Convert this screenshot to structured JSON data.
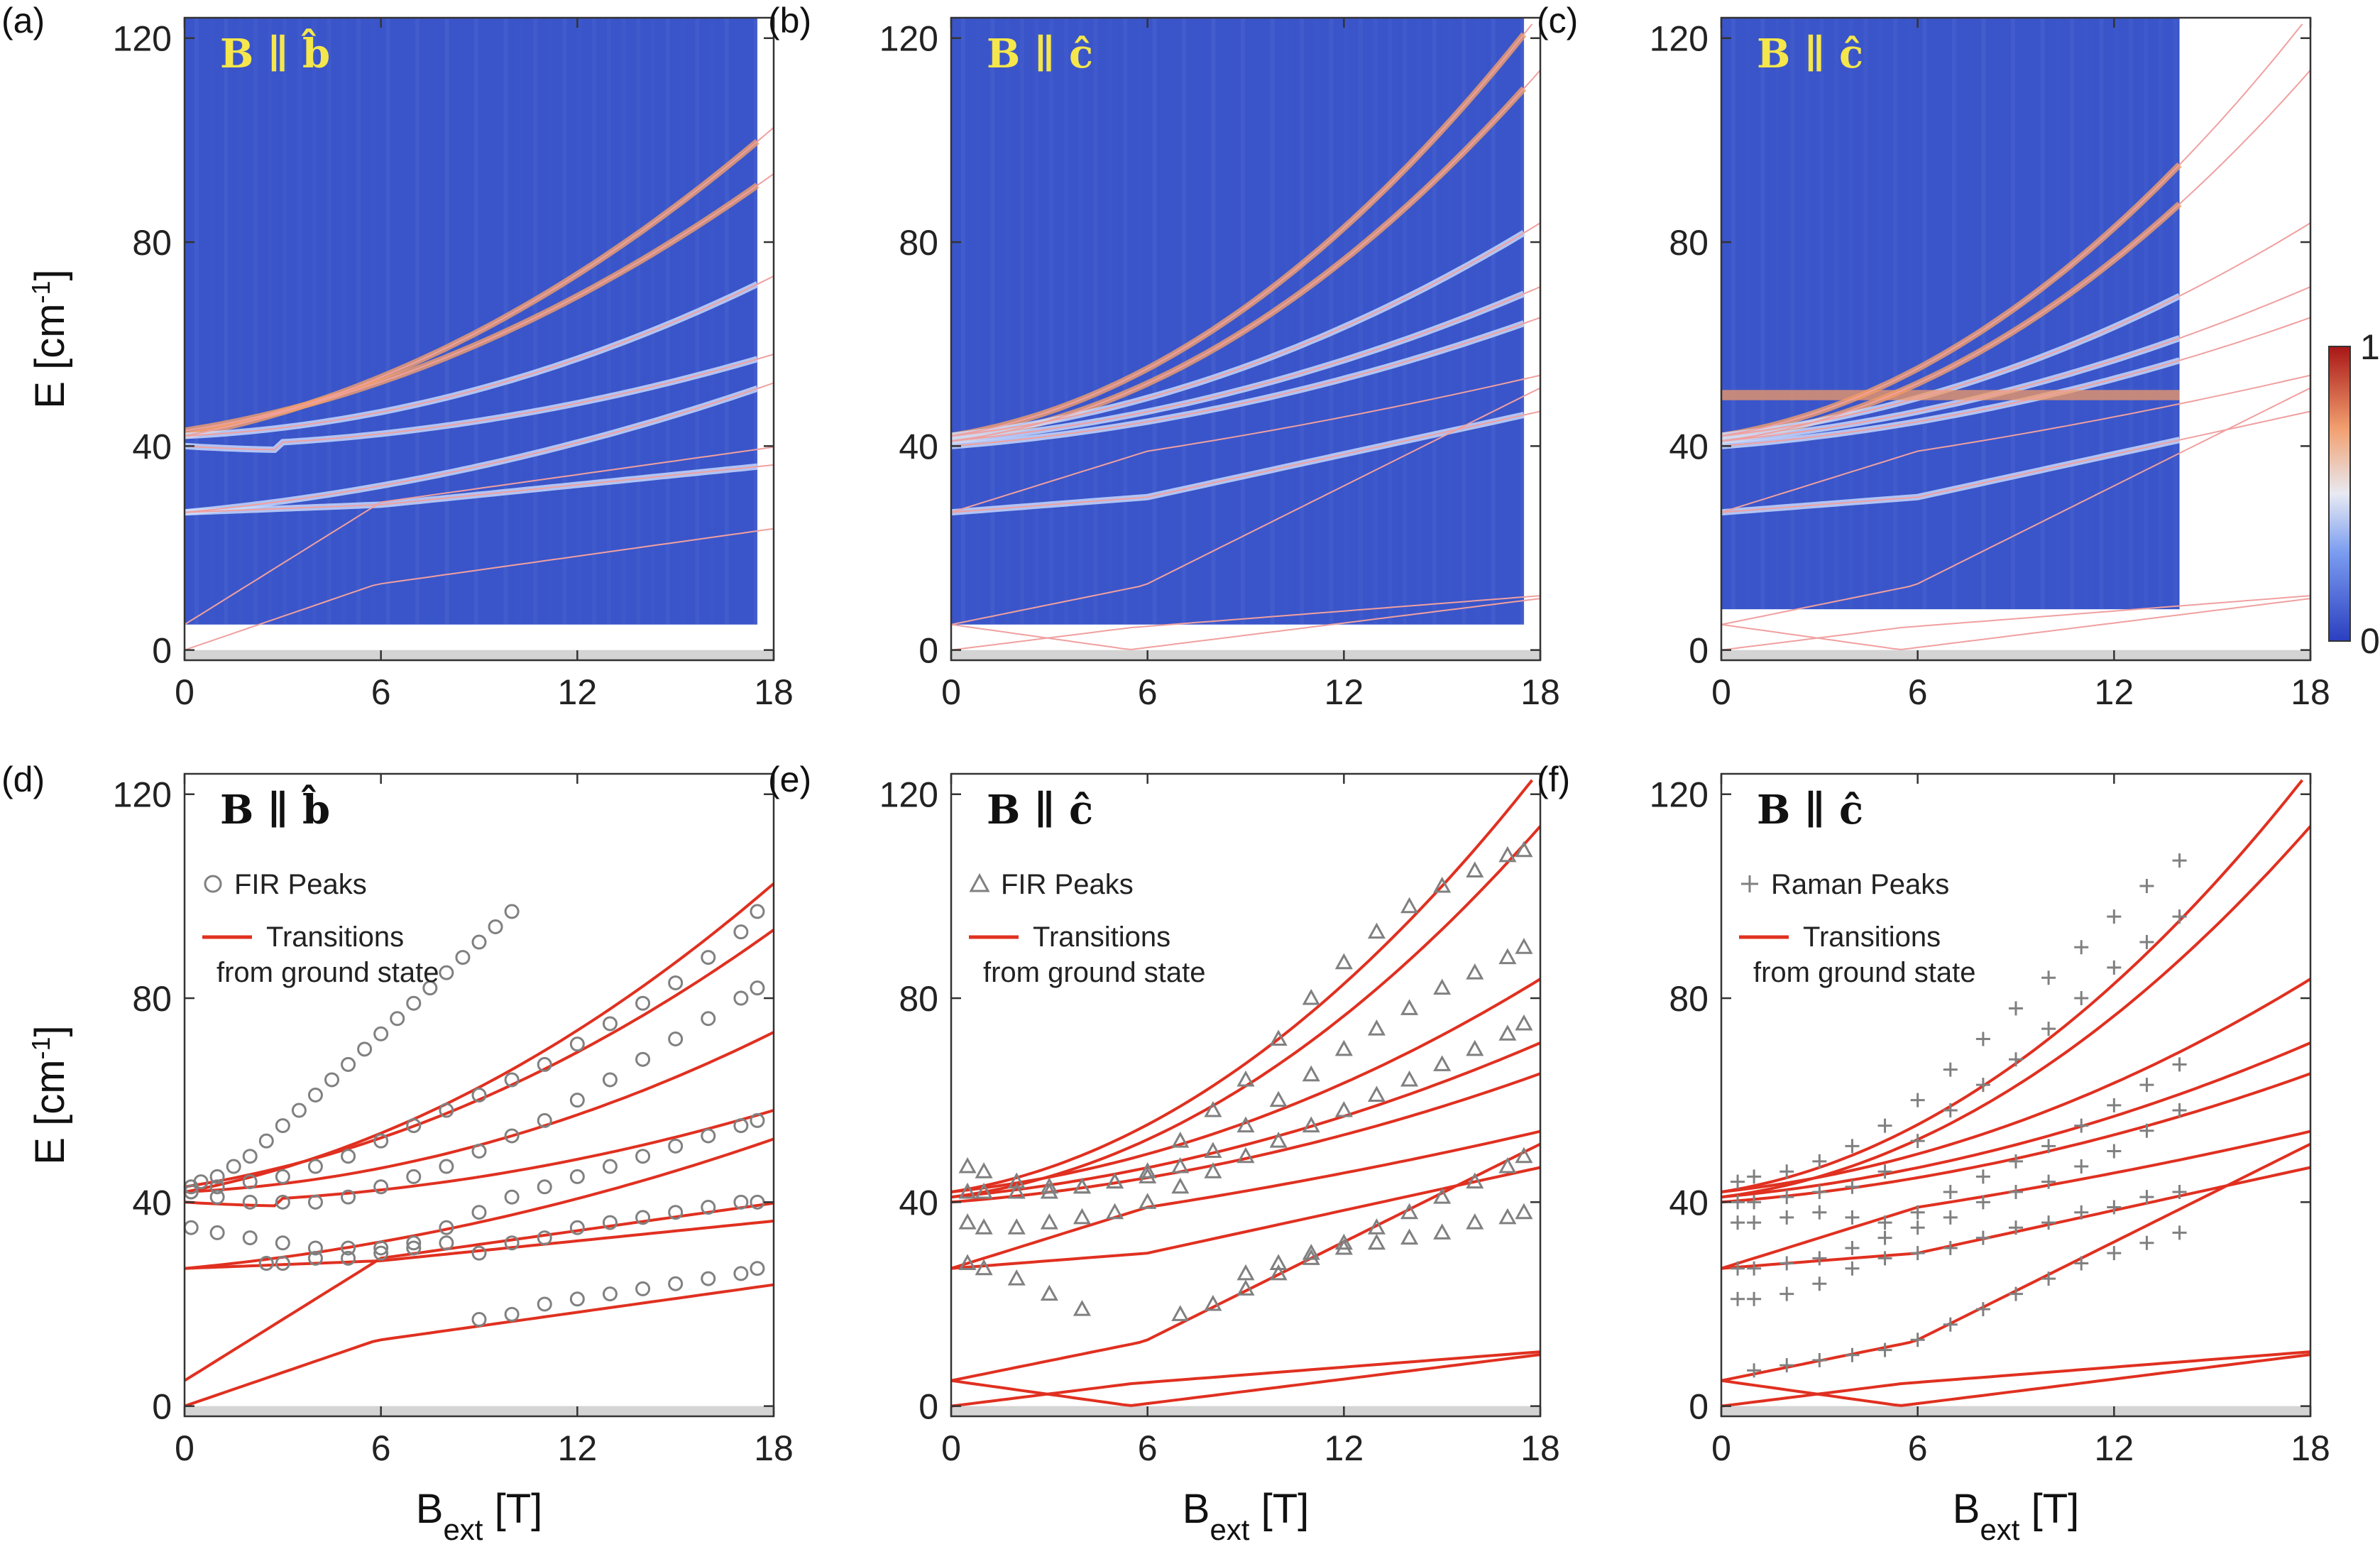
{
  "figure": {
    "panel_labels": [
      "(a)",
      "(b)",
      "(c)",
      "(d)",
      "(e)",
      "(f)"
    ],
    "ylabel": "E [cm",
    "ylabel_sup": "-1",
    "ylabel_end": "]",
    "xlabel": "B",
    "xlabel_sub": "ext",
    "xlabel_end": " [T]",
    "colorbar": {
      "max_label": "1",
      "min_label": "0"
    },
    "colors": {
      "heatmap_bg": "#3a55c9",
      "fit_line": "#e03020",
      "marker": "#808080",
      "title_yellow": "#f5e64c",
      "title_dark": "#111111",
      "out_of_range": "#d4d4d4"
    }
  },
  "chart_data": [
    {
      "panel": "(a)",
      "type": "heatmap",
      "title": "B ∥ b̂",
      "xlim": [
        0,
        18
      ],
      "ylim": [
        -2,
        124
      ],
      "xticks": [
        "0",
        "6",
        "12",
        "18"
      ],
      "yticks": [
        "0",
        "40",
        "80",
        "120"
      ],
      "data_extent": {
        "x": [
          0,
          17.5
        ],
        "y": [
          5,
          124
        ]
      },
      "colorbar": [
        0,
        1
      ]
    },
    {
      "panel": "(b)",
      "type": "heatmap",
      "title": "B ∥ ĉ",
      "xlim": [
        0,
        18
      ],
      "ylim": [
        -2,
        124
      ],
      "xticks": [
        "0",
        "6",
        "12",
        "18"
      ],
      "yticks": [
        "0",
        "40",
        "80",
        "120"
      ],
      "data_extent": {
        "x": [
          0,
          17.5
        ],
        "y": [
          5,
          124
        ]
      },
      "colorbar": [
        0,
        1
      ]
    },
    {
      "panel": "(c)",
      "type": "heatmap",
      "title": "B ∥ ĉ",
      "xlim": [
        0,
        18
      ],
      "ylim": [
        -2,
        124
      ],
      "xticks": [
        "0",
        "6",
        "12",
        "18"
      ],
      "yticks": [
        "0",
        "40",
        "80",
        "120"
      ],
      "data_extent": {
        "x": [
          0,
          14
        ],
        "y": [
          8,
          124
        ]
      },
      "colorbar": [
        0,
        1
      ]
    },
    {
      "panel": "(d)",
      "type": "scatter",
      "title": "B ∥ b̂",
      "xlim": [
        0,
        18
      ],
      "ylim": [
        -2,
        124
      ],
      "xticks": [
        "0",
        "6",
        "12",
        "18"
      ],
      "yticks": [
        "0",
        "40",
        "80",
        "120"
      ],
      "legend": [
        "FIR Peaks",
        "Transitions",
        "from ground state"
      ],
      "marker": "circle",
      "series": [
        {
          "name": "FIR Peaks",
          "x": [
            0.2,
            0.5,
            1,
            1.5,
            2,
            2.5,
            3,
            3.5,
            4,
            4.5,
            5,
            5.5,
            6,
            6.5,
            7,
            7.5,
            8,
            8.5,
            9,
            9.5,
            10
          ],
          "y": [
            43,
            44,
            45,
            47,
            49,
            52,
            55,
            58,
            61,
            64,
            67,
            70,
            73,
            76,
            79,
            82,
            85,
            88,
            91,
            94,
            97
          ]
        },
        {
          "name": "FIR Peaks 2",
          "x": [
            0.2,
            1,
            2,
            3,
            4,
            5,
            6,
            7,
            8,
            9,
            10,
            11,
            12,
            13,
            14,
            15,
            16,
            17,
            17.5
          ],
          "y": [
            42,
            43,
            44,
            45,
            47,
            49,
            52,
            55,
            58,
            61,
            64,
            67,
            71,
            75,
            79,
            83,
            88,
            93,
            97
          ]
        },
        {
          "name": "FIR Peaks 3",
          "x": [
            0.2,
            1,
            2,
            3,
            4,
            5,
            6,
            7,
            8,
            9,
            10,
            11,
            12,
            13,
            14,
            15,
            16,
            17,
            17.5
          ],
          "y": [
            42,
            41,
            40,
            40,
            40,
            41,
            43,
            45,
            47,
            50,
            53,
            56,
            60,
            64,
            68,
            72,
            76,
            80,
            82
          ]
        },
        {
          "name": "FIR Peaks 4",
          "x": [
            0.2,
            1,
            2,
            3,
            4,
            5,
            6,
            7,
            8,
            9,
            10,
            11,
            12,
            13,
            14,
            15,
            16,
            17,
            17.5
          ],
          "y": [
            35,
            34,
            33,
            32,
            31,
            31,
            31,
            32,
            35,
            38,
            41,
            43,
            45,
            47,
            49,
            51,
            53,
            55,
            56
          ]
        },
        {
          "name": "FIR Peaks 5",
          "x": [
            2.5,
            3,
            4,
            5,
            6,
            7,
            8,
            9,
            10,
            11,
            12,
            13,
            14,
            15,
            16,
            17,
            17.5
          ],
          "y": [
            28,
            28,
            29,
            29,
            30,
            31,
            32,
            30,
            32,
            33,
            35,
            36,
            37,
            38,
            39,
            40,
            40
          ]
        },
        {
          "name": "FIR Peaks 6",
          "x": [
            9,
            10,
            11,
            12,
            13,
            14,
            15,
            16,
            17,
            17.5
          ],
          "y": [
            17,
            18,
            20,
            21,
            22,
            23,
            24,
            25,
            26,
            27
          ]
        }
      ]
    },
    {
      "panel": "(e)",
      "type": "scatter",
      "title": "B ∥ ĉ",
      "xlim": [
        0,
        18
      ],
      "ylim": [
        -2,
        124
      ],
      "xticks": [
        "0",
        "6",
        "12",
        "18"
      ],
      "yticks": [
        "0",
        "40",
        "80",
        "120"
      ],
      "legend": [
        "FIR Peaks",
        "Transitions",
        "from ground state"
      ],
      "marker": "triangle",
      "series": [
        {
          "name": "FIR Peaks",
          "x": [
            0.5,
            1,
            2,
            3,
            4,
            5,
            6,
            7,
            8,
            9,
            10,
            11,
            12,
            13,
            14,
            15,
            16,
            17,
            17.5
          ],
          "y": [
            47,
            46,
            44,
            43,
            43,
            44,
            46,
            52,
            58,
            64,
            72,
            80,
            87,
            93,
            98,
            102,
            105,
            108,
            109
          ]
        },
        {
          "name": "FIR Peaks 2",
          "x": [
            0.5,
            1,
            2,
            3,
            4,
            5,
            6,
            7,
            8,
            9,
            10,
            11,
            12,
            13,
            14,
            15,
            16,
            17,
            17.5
          ],
          "y": [
            42,
            42,
            42,
            42,
            43,
            44,
            45,
            47,
            50,
            55,
            60,
            65,
            70,
            74,
            78,
            82,
            85,
            88,
            90
          ]
        },
        {
          "name": "FIR Peaks 3",
          "x": [
            0.5,
            1,
            2,
            3,
            4,
            5,
            6,
            7,
            8,
            9,
            10,
            11,
            12,
            13,
            14,
            15,
            16,
            17,
            17.5
          ],
          "y": [
            36,
            35,
            35,
            36,
            37,
            38,
            40,
            43,
            46,
            49,
            52,
            55,
            58,
            61,
            64,
            67,
            70,
            73,
            75
          ]
        },
        {
          "name": "FIR Peaks 4",
          "x": [
            0.5,
            1,
            2,
            3,
            4,
            7,
            8,
            9,
            10,
            11,
            12,
            13,
            14,
            15,
            16,
            17,
            17.5
          ],
          "y": [
            28,
            27,
            25,
            22,
            19,
            18,
            20,
            23,
            26,
            29,
            32,
            35,
            38,
            41,
            44,
            47,
            49
          ]
        },
        {
          "name": "FIR Peaks 5",
          "x": [
            9,
            10,
            11,
            12,
            13,
            14,
            15,
            16,
            17,
            17.5
          ],
          "y": [
            26,
            28,
            30,
            31,
            32,
            33,
            34,
            36,
            37,
            38
          ]
        }
      ]
    },
    {
      "panel": "(f)",
      "type": "scatter",
      "title": "B ∥ ĉ",
      "xlim": [
        0,
        18
      ],
      "ylim": [
        -2,
        124
      ],
      "xticks": [
        "0",
        "6",
        "12",
        "18"
      ],
      "yticks": [
        "0",
        "40",
        "80",
        "120"
      ],
      "legend": [
        "Raman Peaks",
        "Transitions",
        "from ground state"
      ],
      "marker": "plus",
      "series": [
        {
          "name": "Raman Peaks",
          "x": [
            0.5,
            1,
            2,
            3,
            4,
            5,
            6,
            7,
            8,
            9,
            10,
            11,
            12,
            13,
            14
          ],
          "y": [
            44,
            45,
            46,
            48,
            51,
            55,
            60,
            66,
            72,
            78,
            84,
            90,
            96,
            102,
            107
          ]
        },
        {
          "name": "Raman Peaks 2",
          "x": [
            0.5,
            1,
            2,
            3,
            4,
            5,
            6,
            7,
            8,
            9,
            10,
            11,
            12,
            13,
            14
          ],
          "y": [
            40,
            40,
            41,
            42,
            43,
            46,
            52,
            58,
            63,
            68,
            74,
            80,
            86,
            91,
            96
          ]
        },
        {
          "name": "Raman Peaks 3",
          "x": [
            0.5,
            1,
            2,
            3,
            4,
            5,
            6,
            7,
            8,
            9,
            10,
            11,
            12,
            13,
            14
          ],
          "y": [
            36,
            36,
            37,
            38,
            37,
            36,
            38,
            42,
            45,
            48,
            51,
            55,
            59,
            63,
            67
          ]
        },
        {
          "name": "Raman Peaks 4",
          "x": [
            0.5,
            1,
            2,
            3,
            4,
            5,
            6,
            7,
            8,
            9,
            10,
            11,
            12,
            13,
            14
          ],
          "y": [
            27,
            27,
            28,
            29,
            31,
            33,
            35,
            37,
            40,
            42,
            44,
            47,
            50,
            54,
            58
          ]
        },
        {
          "name": "Raman Peaks 5",
          "x": [
            0.5,
            1,
            2,
            3,
            4,
            5,
            6,
            7,
            8,
            9,
            10,
            11,
            12,
            13,
            14
          ],
          "y": [
            21,
            21,
            22,
            24,
            27,
            29,
            30,
            31,
            33,
            35,
            36,
            38,
            39,
            41,
            42
          ]
        },
        {
          "name": "Raman Peaks 6",
          "x": [
            1,
            2,
            3,
            4,
            5,
            6,
            7,
            8,
            9,
            10,
            11,
            12,
            13,
            14
          ],
          "y": [
            7,
            8,
            9,
            10,
            11,
            13,
            16,
            19,
            22,
            25,
            28,
            30,
            32,
            34
          ]
        }
      ]
    }
  ]
}
